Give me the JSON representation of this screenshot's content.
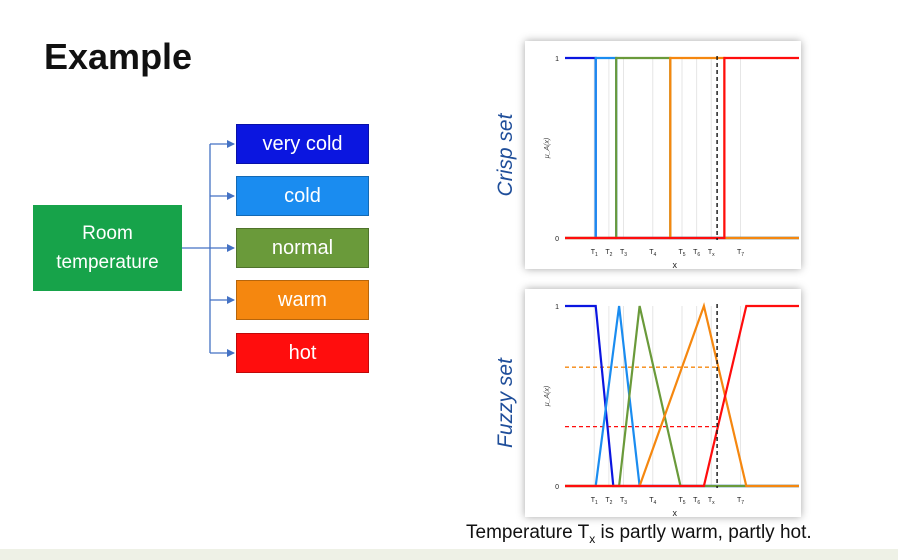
{
  "slide": {
    "title": "Example"
  },
  "tree": {
    "root_label": [
      "Room",
      "temperature"
    ],
    "root_color": "#17a34a",
    "categories": [
      {
        "label": "very cold",
        "color": "#0b16e0"
      },
      {
        "label": "cold",
        "color": "#1a8cf0"
      },
      {
        "label": "normal",
        "color": "#6a9a3a"
      },
      {
        "label": "warm",
        "color": "#f5870f"
      },
      {
        "label": "hot",
        "color": "#ff0d0d"
      }
    ],
    "connector_color": "#4472c4"
  },
  "crisp": {
    "side_label": "Crisp set"
  },
  "fuzzy": {
    "side_label": "Fuzzy set"
  },
  "caption": {
    "prefix": "Temperature T",
    "sub": "x",
    "suffix": " is partly warm, partly hot."
  },
  "chart_data": [
    {
      "type": "line",
      "title": "",
      "xlabel": "x",
      "ylabel": "μ_A(x)",
      "ylim": [
        0,
        1
      ],
      "yticks": [
        "0",
        "1"
      ],
      "xticks": [
        {
          "main": "T",
          "sub": "1",
          "x": 2
        },
        {
          "main": "T",
          "sub": "2",
          "x": 3
        },
        {
          "main": "T",
          "sub": "3",
          "x": 4
        },
        {
          "main": "T",
          "sub": "4",
          "x": 6
        },
        {
          "main": "T",
          "sub": "5",
          "x": 8
        },
        {
          "main": "T",
          "sub": "6",
          "x": 9
        },
        {
          "main": "T",
          "sub": "x",
          "x": 10
        },
        {
          "main": "T",
          "sub": "7",
          "x": 12
        }
      ],
      "xlim": [
        0,
        16
      ],
      "marker_x": 10.4,
      "series": [
        {
          "color": "#0b16e0",
          "x": [
            0,
            2.1,
            2.1,
            16
          ],
          "y": [
            1,
            1,
            0,
            0
          ]
        },
        {
          "color": "#1a8cf0",
          "x": [
            0,
            2.1,
            2.1,
            3.5,
            3.5,
            16
          ],
          "y": [
            0,
            0,
            1,
            1,
            0,
            0
          ]
        },
        {
          "color": "#6a9a3a",
          "x": [
            0,
            3.5,
            3.5,
            7.2,
            7.2,
            16
          ],
          "y": [
            0,
            0,
            1,
            1,
            0,
            0
          ]
        },
        {
          "color": "#f5870f",
          "x": [
            0,
            7.2,
            7.2,
            10.9,
            10.9,
            16
          ],
          "y": [
            0,
            0,
            1,
            1,
            0,
            0
          ]
        },
        {
          "color": "#ff0d0d",
          "x": [
            0,
            10.9,
            10.9,
            16
          ],
          "y": [
            0,
            0,
            1,
            1
          ]
        }
      ]
    },
    {
      "type": "line",
      "title": "",
      "xlabel": "x",
      "ylabel": "μ_A(x)",
      "ylim": [
        0,
        1
      ],
      "yticks": [
        "0",
        "1"
      ],
      "xticks": [
        {
          "main": "T",
          "sub": "1",
          "x": 2
        },
        {
          "main": "T",
          "sub": "2",
          "x": 3
        },
        {
          "main": "T",
          "sub": "3",
          "x": 4
        },
        {
          "main": "T",
          "sub": "4",
          "x": 6
        },
        {
          "main": "T",
          "sub": "5",
          "x": 8
        },
        {
          "main": "T",
          "sub": "6",
          "x": 9
        },
        {
          "main": "T",
          "sub": "x",
          "x": 10
        },
        {
          "main": "T",
          "sub": "7",
          "x": 12
        }
      ],
      "xlim": [
        0,
        16
      ],
      "marker_x": 10.4,
      "membership_levels": [
        {
          "color": "#f5870f",
          "y": 0.66
        },
        {
          "color": "#ff0d0d",
          "y": 0.33
        }
      ],
      "series": [
        {
          "color": "#0b16e0",
          "x": [
            0,
            2.1,
            3.3,
            16
          ],
          "y": [
            1,
            1,
            0,
            0
          ]
        },
        {
          "color": "#1a8cf0",
          "x": [
            0,
            2.1,
            3.7,
            5.1,
            16
          ],
          "y": [
            0,
            0,
            1,
            0,
            0
          ]
        },
        {
          "color": "#6a9a3a",
          "x": [
            0,
            3.7,
            5.1,
            7.9,
            16
          ],
          "y": [
            0,
            0,
            1,
            0,
            0
          ]
        },
        {
          "color": "#f5870f",
          "x": [
            0,
            5.1,
            9.5,
            12.4,
            16
          ],
          "y": [
            0,
            0,
            1,
            0,
            0
          ]
        },
        {
          "color": "#ff0d0d",
          "x": [
            0,
            9.5,
            12.4,
            16
          ],
          "y": [
            0,
            0,
            1,
            1
          ]
        }
      ]
    }
  ]
}
